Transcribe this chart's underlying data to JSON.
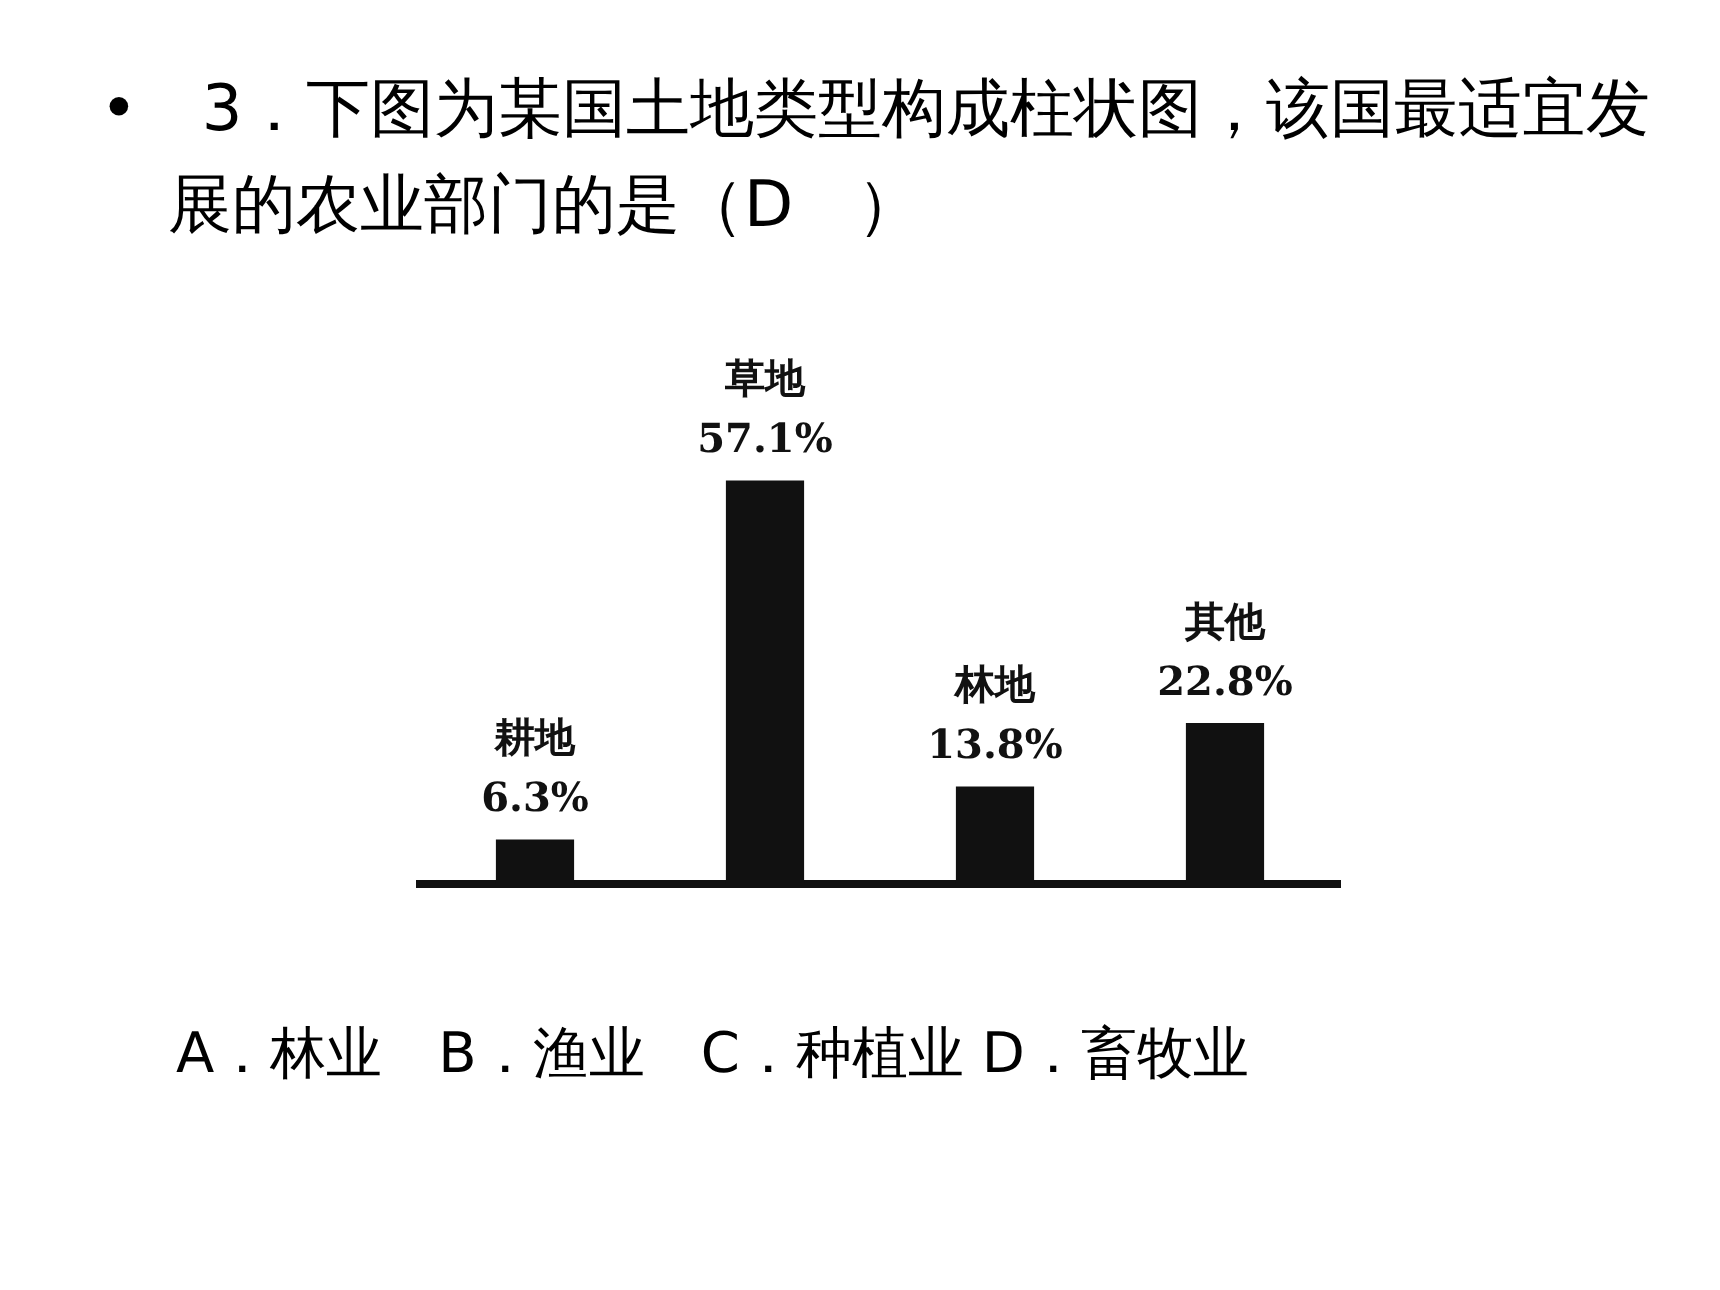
{
  "chart_data": {
    "type": "bar",
    "title": "•　3．下图为某国土地类型构成柱状图，该国最适宜发展的农业部门的是（D　）",
    "categories": [
      "耕地",
      "草地",
      "林地",
      "其他"
    ],
    "values": [
      6.3,
      57.1,
      13.8,
      22.8
    ],
    "value_labels": [
      "6.3%",
      "57.1%",
      "13.8%",
      "22.8%"
    ],
    "color": "#111111",
    "annotations": [
      "A．林业　B．渔业　C．种植业 D．畜牧业"
    ]
  }
}
